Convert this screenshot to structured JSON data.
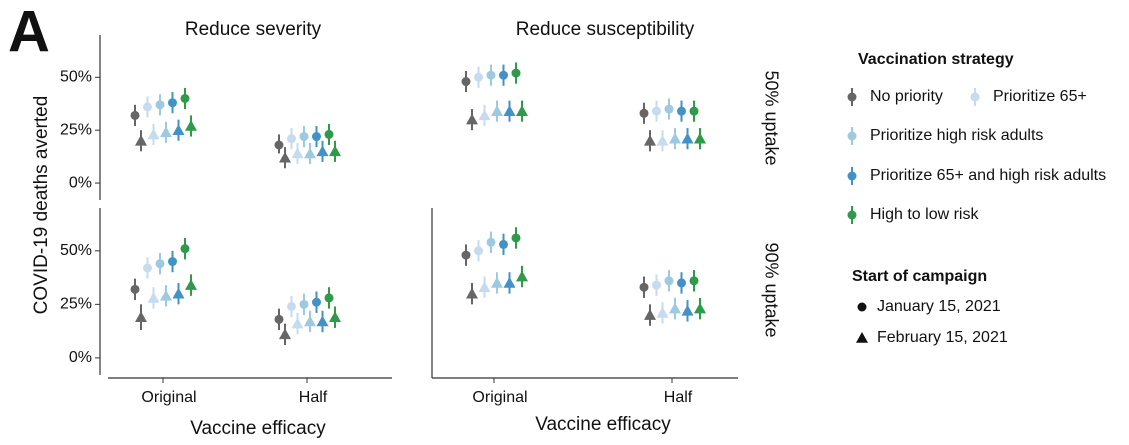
{
  "chart_data": {
    "type": "pointrange",
    "panel_label": "A",
    "columns": [
      "Reduce severity",
      "Reduce susceptibility"
    ],
    "rows": [
      "50% uptake",
      "90% uptake"
    ],
    "x_label": "Vaccine efficacy",
    "y_label": "COVID-19 deaths averted",
    "categories": [
      "Original",
      "Half"
    ],
    "ylim": [
      -8,
      70
    ],
    "yticks": [
      {
        "value": 0,
        "label": "0%"
      },
      {
        "value": 25,
        "label": "25%"
      },
      {
        "value": 50,
        "label": "50%"
      }
    ],
    "strategy_title": "Vaccination strategy",
    "strategies": [
      {
        "name": "No priority",
        "color": "#666666"
      },
      {
        "name": "Prioritize 65+",
        "color": "#c6dbef"
      },
      {
        "name": "Prioritize high risk adults",
        "color": "#9ecae1"
      },
      {
        "name": "Prioritize 65+ and high risk adults",
        "color": "#4292c6"
      },
      {
        "name": "High to low risk",
        "color": "#2e9a4a"
      }
    ],
    "start_title": "Start of campaign",
    "starts": [
      {
        "name": "January 15, 2021",
        "marker": "circle"
      },
      {
        "name": "February 15, 2021",
        "marker": "triangle"
      }
    ],
    "panels": [
      {
        "points": [
          [
            {
              "values": [
                32,
                18
              ],
              "lower": [
                27,
                14
              ],
              "upper": [
                37,
                23
              ]
            },
            {
              "values": [
                20,
                12
              ],
              "lower": [
                15,
                7
              ],
              "upper": [
                25,
                17
              ]
            }
          ],
          [
            {
              "values": [
                36,
                21
              ],
              "lower": [
                31,
                16
              ],
              "upper": [
                41,
                26
              ]
            },
            {
              "values": [
                23,
                14
              ],
              "lower": [
                18,
                9
              ],
              "upper": [
                28,
                19
              ]
            }
          ],
          [
            {
              "values": [
                37,
                22
              ],
              "lower": [
                32,
                17
              ],
              "upper": [
                42,
                27
              ]
            },
            {
              "values": [
                24,
                14
              ],
              "lower": [
                19,
                9
              ],
              "upper": [
                29,
                19
              ]
            }
          ],
          [
            {
              "values": [
                38,
                22
              ],
              "lower": [
                33,
                17
              ],
              "upper": [
                43,
                27
              ]
            },
            {
              "values": [
                25,
                15
              ],
              "lower": [
                20,
                10
              ],
              "upper": [
                30,
                20
              ]
            }
          ],
          [
            {
              "values": [
                40,
                23
              ],
              "lower": [
                35,
                18
              ],
              "upper": [
                45,
                28
              ]
            },
            {
              "values": [
                27,
                15
              ],
              "lower": [
                22,
                10
              ],
              "upper": [
                32,
                20
              ]
            }
          ]
        ]
      },
      {
        "points": [
          [
            {
              "values": [
                48,
                33
              ],
              "lower": [
                43,
                28
              ],
              "upper": [
                53,
                38
              ]
            },
            {
              "values": [
                30,
                20
              ],
              "lower": [
                25,
                15
              ],
              "upper": [
                35,
                25
              ]
            }
          ],
          [
            {
              "values": [
                50,
                34
              ],
              "lower": [
                45,
                29
              ],
              "upper": [
                55,
                39
              ]
            },
            {
              "values": [
                32,
                20
              ],
              "lower": [
                27,
                15
              ],
              "upper": [
                37,
                25
              ]
            }
          ],
          [
            {
              "values": [
                51,
                35
              ],
              "lower": [
                46,
                30
              ],
              "upper": [
                56,
                40
              ]
            },
            {
              "values": [
                34,
                21
              ],
              "lower": [
                29,
                16
              ],
              "upper": [
                39,
                26
              ]
            }
          ],
          [
            {
              "values": [
                51,
                34
              ],
              "lower": [
                46,
                29
              ],
              "upper": [
                56,
                39
              ]
            },
            {
              "values": [
                34,
                21
              ],
              "lower": [
                29,
                16
              ],
              "upper": [
                39,
                26
              ]
            }
          ],
          [
            {
              "values": [
                52,
                34
              ],
              "lower": [
                47,
                29
              ],
              "upper": [
                57,
                39
              ]
            },
            {
              "values": [
                34,
                21
              ],
              "lower": [
                29,
                16
              ],
              "upper": [
                39,
                26
              ]
            }
          ]
        ]
      },
      {
        "points": [
          [
            {
              "values": [
                32,
                18
              ],
              "lower": [
                27,
                13
              ],
              "upper": [
                37,
                23
              ]
            },
            {
              "values": [
                19,
                11
              ],
              "lower": [
                13,
                6
              ],
              "upper": [
                25,
                16
              ]
            }
          ],
          [
            {
              "values": [
                42,
                24
              ],
              "lower": [
                37,
                19
              ],
              "upper": [
                47,
                29
              ]
            },
            {
              "values": [
                28,
                16
              ],
              "lower": [
                23,
                11
              ],
              "upper": [
                33,
                21
              ]
            }
          ],
          [
            {
              "values": [
                44,
                25
              ],
              "lower": [
                39,
                20
              ],
              "upper": [
                49,
                30
              ]
            },
            {
              "values": [
                29,
                17
              ],
              "lower": [
                24,
                12
              ],
              "upper": [
                34,
                22
              ]
            }
          ],
          [
            {
              "values": [
                45,
                26
              ],
              "lower": [
                40,
                21
              ],
              "upper": [
                50,
                31
              ]
            },
            {
              "values": [
                30,
                17
              ],
              "lower": [
                25,
                12
              ],
              "upper": [
                35,
                22
              ]
            }
          ],
          [
            {
              "values": [
                51,
                28
              ],
              "lower": [
                46,
                23
              ],
              "upper": [
                56,
                33
              ]
            },
            {
              "values": [
                34,
                19
              ],
              "lower": [
                29,
                14
              ],
              "upper": [
                39,
                24
              ]
            }
          ]
        ]
      },
      {
        "points": [
          [
            {
              "values": [
                48,
                33
              ],
              "lower": [
                43,
                28
              ],
              "upper": [
                53,
                38
              ]
            },
            {
              "values": [
                30,
                20
              ],
              "lower": [
                25,
                15
              ],
              "upper": [
                35,
                25
              ]
            }
          ],
          [
            {
              "values": [
                50,
                34
              ],
              "lower": [
                45,
                29
              ],
              "upper": [
                55,
                39
              ]
            },
            {
              "values": [
                33,
                21
              ],
              "lower": [
                28,
                16
              ],
              "upper": [
                38,
                26
              ]
            }
          ],
          [
            {
              "values": [
                54,
                36
              ],
              "lower": [
                49,
                31
              ],
              "upper": [
                59,
                41
              ]
            },
            {
              "values": [
                35,
                23
              ],
              "lower": [
                30,
                18
              ],
              "upper": [
                40,
                28
              ]
            }
          ],
          [
            {
              "values": [
                53,
                35
              ],
              "lower": [
                48,
                30
              ],
              "upper": [
                58,
                40
              ]
            },
            {
              "values": [
                35,
                22
              ],
              "lower": [
                30,
                17
              ],
              "upper": [
                40,
                27
              ]
            }
          ],
          [
            {
              "values": [
                56,
                36
              ],
              "lower": [
                51,
                31
              ],
              "upper": [
                61,
                41
              ]
            },
            {
              "values": [
                38,
                23
              ],
              "lower": [
                33,
                18
              ],
              "upper": [
                43,
                28
              ]
            }
          ]
        ]
      }
    ]
  }
}
